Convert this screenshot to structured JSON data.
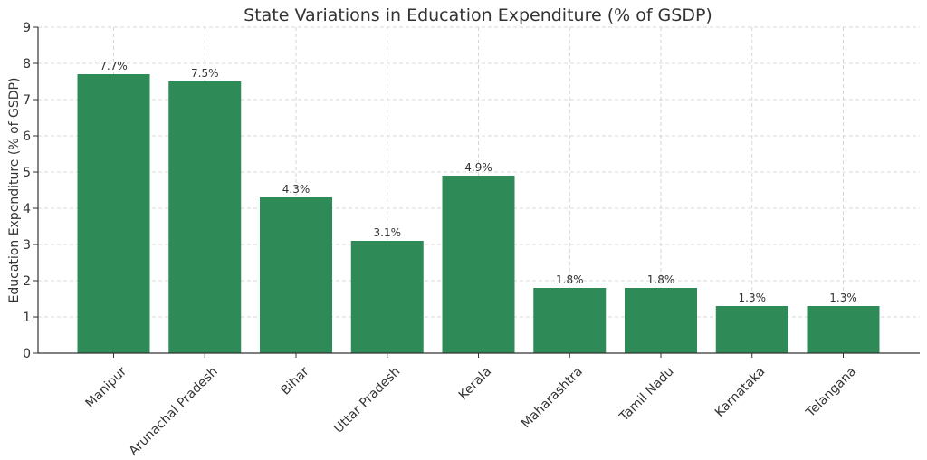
{
  "chart_data": {
    "type": "bar",
    "title": "State Variations in Education Expenditure (% of GSDP)",
    "xlabel": "",
    "ylabel": "Education Expenditure (% of GSDP)",
    "ylim": [
      0,
      9
    ],
    "yticks": [
      "0",
      "1",
      "2",
      "3",
      "4",
      "5",
      "6",
      "7",
      "8",
      "9"
    ],
    "categories": [
      "Manipur",
      "Arunachal Pradesh",
      "Bihar",
      "Uttar Pradesh",
      "Kerala",
      "Maharashtra",
      "Tamil Nadu",
      "Karnataka",
      "Telangana"
    ],
    "values": [
      7.7,
      7.5,
      4.3,
      3.1,
      4.9,
      1.8,
      1.8,
      1.3,
      1.3
    ],
    "data_labels": [
      "7.7%",
      "7.5%",
      "4.3%",
      "3.1%",
      "4.9%",
      "1.8%",
      "1.8%",
      "1.3%",
      "1.3%"
    ],
    "bar_color": "#2e8b57",
    "grid": true,
    "legend": "none"
  }
}
